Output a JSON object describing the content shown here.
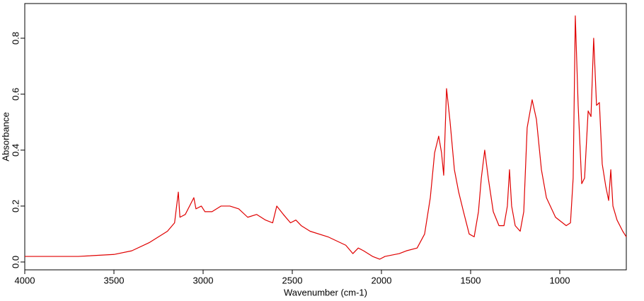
{
  "chart_data": {
    "type": "line",
    "x_label": "Wavenumber (cm-1)",
    "y_label": "Absorbance",
    "xlim": [
      4000,
      627
    ],
    "ylim": [
      -0.028,
      0.924
    ],
    "xticks": [
      4000,
      3500,
      3000,
      2500,
      2000,
      1500,
      1000
    ],
    "yticks": [
      {
        "value": 0,
        "label": "0.0"
      },
      {
        "value": 0.2,
        "label": "0.2"
      },
      {
        "value": 0.4,
        "label": "0.4"
      },
      {
        "value": 0.6,
        "label": "0.6"
      },
      {
        "value": 0.8,
        "label": "0.8"
      }
    ],
    "grid": false,
    "series": [
      {
        "name": "Absorbance",
        "color": "#e00000",
        "x": [
          4000,
          3700,
          3500,
          3400,
          3300,
          3200,
          3160,
          3139,
          3130,
          3100,
          3052,
          3040,
          3010,
          2990,
          2950,
          2900,
          2850,
          2800,
          2750,
          2700,
          2650,
          2610,
          2587,
          2550,
          2510,
          2480,
          2450,
          2400,
          2300,
          2200,
          2160,
          2130,
          2100,
          2050,
          2010,
          1980,
          1900,
          1860,
          1800,
          1758,
          1726,
          1702,
          1679,
          1663,
          1651,
          1635,
          1615,
          1591,
          1567,
          1540,
          1508,
          1480,
          1456,
          1440,
          1421,
          1401,
          1373,
          1341,
          1313,
          1294,
          1282,
          1270,
          1250,
          1222,
          1202,
          1183,
          1155,
          1131,
          1103,
          1075,
          1024,
          964,
          940,
          925,
          913,
          897,
          877,
          861,
          841,
          825,
          810,
          794,
          778,
          762,
          742,
          726,
          714,
          702,
          679,
          647,
          627
        ],
        "values": [
          0.02,
          0.02,
          0.027,
          0.04,
          0.07,
          0.11,
          0.14,
          0.25,
          0.16,
          0.17,
          0.23,
          0.19,
          0.2,
          0.18,
          0.18,
          0.2,
          0.2,
          0.19,
          0.16,
          0.17,
          0.15,
          0.14,
          0.2,
          0.17,
          0.14,
          0.15,
          0.13,
          0.11,
          0.09,
          0.06,
          0.03,
          0.05,
          0.04,
          0.02,
          0.01,
          0.02,
          0.03,
          0.04,
          0.05,
          0.1,
          0.23,
          0.39,
          0.45,
          0.39,
          0.31,
          0.62,
          0.5,
          0.33,
          0.25,
          0.18,
          0.1,
          0.09,
          0.18,
          0.3,
          0.4,
          0.3,
          0.18,
          0.13,
          0.13,
          0.2,
          0.33,
          0.2,
          0.13,
          0.11,
          0.18,
          0.48,
          0.58,
          0.51,
          0.33,
          0.23,
          0.16,
          0.13,
          0.14,
          0.3,
          0.88,
          0.56,
          0.28,
          0.3,
          0.54,
          0.52,
          0.8,
          0.56,
          0.57,
          0.35,
          0.27,
          0.22,
          0.33,
          0.2,
          0.15,
          0.11,
          0.09
        ]
      }
    ]
  }
}
